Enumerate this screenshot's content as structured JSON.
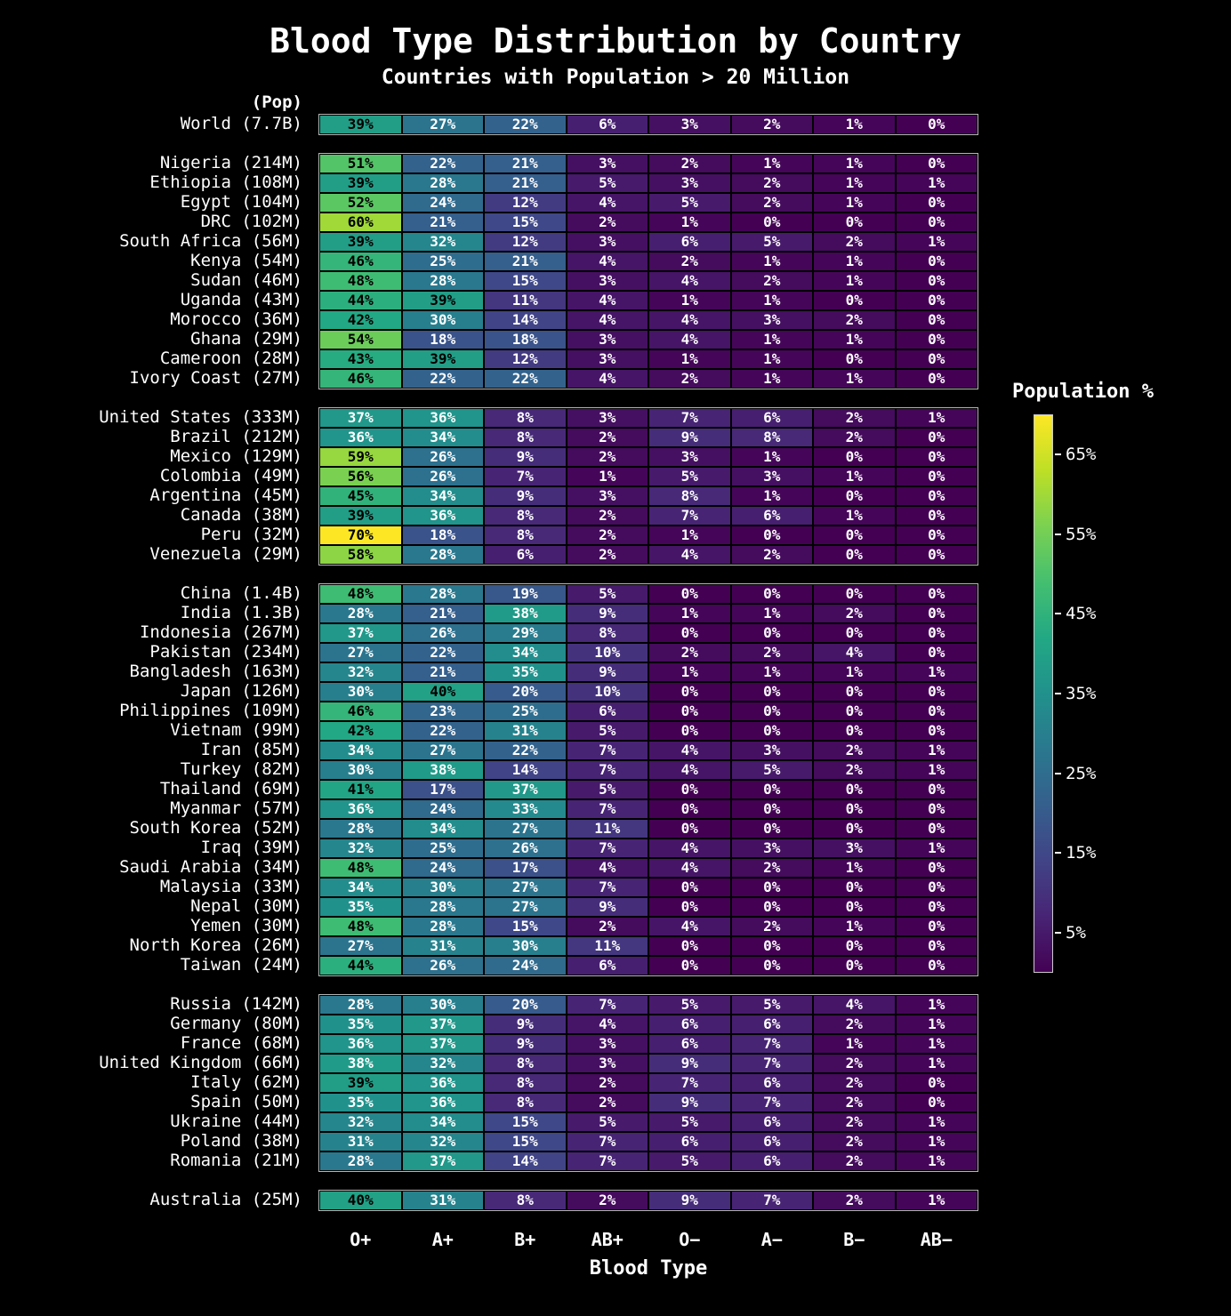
{
  "colors": {
    "background": "#000000",
    "text": "#ffffff",
    "cell_border": "#000000",
    "group_outline": "#b5b5b5"
  },
  "chart_data": {
    "type": "heatmap",
    "title": "Blood Type Distribution by Country",
    "subtitle": "Countries with Population > 20 Million",
    "xlabel": "Blood Type",
    "row_header": "(Pop)",
    "x_categories": [
      "O+",
      "A+",
      "B+",
      "AB+",
      "O−",
      "A−",
      "B−",
      "AB−"
    ],
    "vmin": 0,
    "vmax": 70,
    "colormap": "viridis",
    "legend": {
      "title": "Population %",
      "ticks": [
        "65%",
        "55%",
        "45%",
        "35%",
        "25%",
        "15%",
        "5%"
      ],
      "tick_values": [
        65,
        55,
        45,
        35,
        25,
        15,
        5
      ],
      "position": "right"
    },
    "groups": [
      [
        {
          "label": "World (7.7B)",
          "values": [
            39,
            27,
            22,
            6,
            3,
            2,
            1,
            0
          ]
        }
      ],
      [
        {
          "label": "Nigeria (214M)",
          "values": [
            51,
            22,
            21,
            3,
            2,
            1,
            1,
            0
          ]
        },
        {
          "label": "Ethiopia (108M)",
          "values": [
            39,
            28,
            21,
            5,
            3,
            2,
            1,
            1
          ]
        },
        {
          "label": "Egypt (104M)",
          "values": [
            52,
            24,
            12,
            4,
            5,
            2,
            1,
            0
          ]
        },
        {
          "label": "DRC (102M)",
          "values": [
            60,
            21,
            15,
            2,
            1,
            0,
            0,
            0
          ]
        },
        {
          "label": "South Africa (56M)",
          "values": [
            39,
            32,
            12,
            3,
            6,
            5,
            2,
            1
          ]
        },
        {
          "label": "Kenya (54M)",
          "values": [
            46,
            25,
            21,
            4,
            2,
            1,
            1,
            0
          ]
        },
        {
          "label": "Sudan (46M)",
          "values": [
            48,
            28,
            15,
            3,
            4,
            2,
            1,
            0
          ]
        },
        {
          "label": "Uganda (43M)",
          "values": [
            44,
            39,
            11,
            4,
            1,
            1,
            0,
            0
          ]
        },
        {
          "label": "Morocco (36M)",
          "values": [
            42,
            30,
            14,
            4,
            4,
            3,
            2,
            0
          ]
        },
        {
          "label": "Ghana (29M)",
          "values": [
            54,
            18,
            18,
            3,
            4,
            1,
            1,
            0
          ]
        },
        {
          "label": "Cameroon (28M)",
          "values": [
            43,
            39,
            12,
            3,
            1,
            1,
            0,
            0
          ]
        },
        {
          "label": "Ivory Coast (27M)",
          "values": [
            46,
            22,
            22,
            4,
            2,
            1,
            1,
            0
          ]
        }
      ],
      [
        {
          "label": "United States (333M)",
          "values": [
            37,
            36,
            8,
            3,
            7,
            6,
            2,
            1
          ]
        },
        {
          "label": "Brazil (212M)",
          "values": [
            36,
            34,
            8,
            2,
            9,
            8,
            2,
            0
          ]
        },
        {
          "label": "Mexico (129M)",
          "values": [
            59,
            26,
            9,
            2,
            3,
            1,
            0,
            0
          ]
        },
        {
          "label": "Colombia (49M)",
          "values": [
            56,
            26,
            7,
            1,
            5,
            3,
            1,
            0
          ]
        },
        {
          "label": "Argentina (45M)",
          "values": [
            45,
            34,
            9,
            3,
            8,
            1,
            0,
            0
          ]
        },
        {
          "label": "Canada (38M)",
          "values": [
            39,
            36,
            8,
            2,
            7,
            6,
            1,
            0
          ]
        },
        {
          "label": "Peru (32M)",
          "values": [
            70,
            18,
            8,
            2,
            1,
            0,
            0,
            0
          ]
        },
        {
          "label": "Venezuela (29M)",
          "values": [
            58,
            28,
            6,
            2,
            4,
            2,
            0,
            0
          ]
        }
      ],
      [
        {
          "label": "China (1.4B)",
          "values": [
            48,
            28,
            19,
            5,
            0,
            0,
            0,
            0
          ]
        },
        {
          "label": "India (1.3B)",
          "values": [
            28,
            21,
            38,
            9,
            1,
            1,
            2,
            0
          ]
        },
        {
          "label": "Indonesia (267M)",
          "values": [
            37,
            26,
            29,
            8,
            0,
            0,
            0,
            0
          ]
        },
        {
          "label": "Pakistan (234M)",
          "values": [
            27,
            22,
            34,
            10,
            2,
            2,
            4,
            0
          ]
        },
        {
          "label": "Bangladesh (163M)",
          "values": [
            32,
            21,
            35,
            9,
            1,
            1,
            1,
            1
          ]
        },
        {
          "label": "Japan (126M)",
          "values": [
            30,
            40,
            20,
            10,
            0,
            0,
            0,
            0
          ]
        },
        {
          "label": "Philippines (109M)",
          "values": [
            46,
            23,
            25,
            6,
            0,
            0,
            0,
            0
          ]
        },
        {
          "label": "Vietnam (99M)",
          "values": [
            42,
            22,
            31,
            5,
            0,
            0,
            0,
            0
          ]
        },
        {
          "label": "Iran (85M)",
          "values": [
            34,
            27,
            22,
            7,
            4,
            3,
            2,
            1
          ]
        },
        {
          "label": "Turkey (82M)",
          "values": [
            30,
            38,
            14,
            7,
            4,
            5,
            2,
            1
          ]
        },
        {
          "label": "Thailand (69M)",
          "values": [
            41,
            17,
            37,
            5,
            0,
            0,
            0,
            0
          ]
        },
        {
          "label": "Myanmar (57M)",
          "values": [
            36,
            24,
            33,
            7,
            0,
            0,
            0,
            0
          ]
        },
        {
          "label": "South Korea (52M)",
          "values": [
            28,
            34,
            27,
            11,
            0,
            0,
            0,
            0
          ]
        },
        {
          "label": "Iraq (39M)",
          "values": [
            32,
            25,
            26,
            7,
            4,
            3,
            3,
            1
          ]
        },
        {
          "label": "Saudi Arabia (34M)",
          "values": [
            48,
            24,
            17,
            4,
            4,
            2,
            1,
            0
          ]
        },
        {
          "label": "Malaysia (33M)",
          "values": [
            34,
            30,
            27,
            7,
            0,
            0,
            0,
            0
          ]
        },
        {
          "label": "Nepal (30M)",
          "values": [
            35,
            28,
            27,
            9,
            0,
            0,
            0,
            0
          ]
        },
        {
          "label": "Yemen (30M)",
          "values": [
            48,
            28,
            15,
            2,
            4,
            2,
            1,
            0
          ]
        },
        {
          "label": "North Korea (26M)",
          "values": [
            27,
            31,
            30,
            11,
            0,
            0,
            0,
            0
          ]
        },
        {
          "label": "Taiwan (24M)",
          "values": [
            44,
            26,
            24,
            6,
            0,
            0,
            0,
            0
          ]
        }
      ],
      [
        {
          "label": "Russia (142M)",
          "values": [
            28,
            30,
            20,
            7,
            5,
            5,
            4,
            1
          ]
        },
        {
          "label": "Germany (80M)",
          "values": [
            35,
            37,
            9,
            4,
            6,
            6,
            2,
            1
          ]
        },
        {
          "label": "France (68M)",
          "values": [
            36,
            37,
            9,
            3,
            6,
            7,
            1,
            1
          ]
        },
        {
          "label": "United Kingdom (66M)",
          "values": [
            38,
            32,
            8,
            3,
            9,
            7,
            2,
            1
          ]
        },
        {
          "label": "Italy (62M)",
          "values": [
            39,
            36,
            8,
            2,
            7,
            6,
            2,
            0
          ]
        },
        {
          "label": "Spain (50M)",
          "values": [
            35,
            36,
            8,
            2,
            9,
            7,
            2,
            0
          ]
        },
        {
          "label": "Ukraine (44M)",
          "values": [
            32,
            34,
            15,
            5,
            5,
            6,
            2,
            1
          ]
        },
        {
          "label": "Poland (38M)",
          "values": [
            31,
            32,
            15,
            7,
            6,
            6,
            2,
            1
          ]
        },
        {
          "label": "Romania (21M)",
          "values": [
            28,
            37,
            14,
            7,
            5,
            6,
            2,
            1
          ]
        }
      ],
      [
        {
          "label": "Australia (25M)",
          "values": [
            40,
            31,
            8,
            2,
            9,
            7,
            2,
            1
          ]
        }
      ]
    ]
  }
}
